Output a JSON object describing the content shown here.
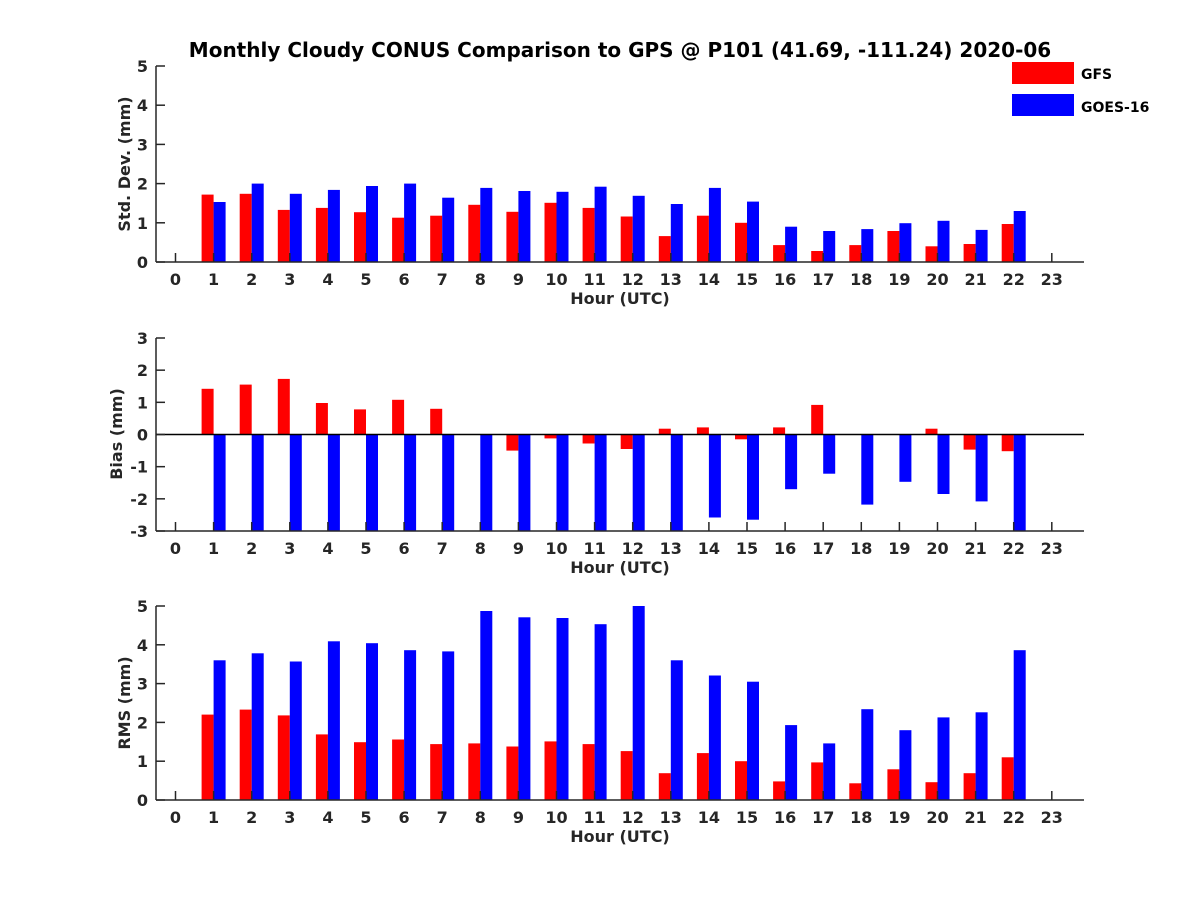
{
  "title": "Monthly Cloudy CONUS Comparison to GPS @ P101 (41.69, -111.24) 2020-06",
  "legend": [
    {
      "name": "GFS",
      "color": "#ff0000"
    },
    {
      "name": "GOES-16",
      "color": "#0000ff"
    }
  ],
  "chart_data": [
    {
      "type": "bar",
      "ylabel": "Std. Dev. (mm)",
      "xlabel": "Hour (UTC)",
      "categories": [
        "0",
        "1",
        "2",
        "3",
        "4",
        "5",
        "6",
        "7",
        "8",
        "9",
        "10",
        "11",
        "12",
        "13",
        "14",
        "15",
        "16",
        "17",
        "18",
        "19",
        "20",
        "21",
        "22",
        "23"
      ],
      "ylim": [
        0,
        5
      ],
      "yticks": [
        "0",
        "1",
        "2",
        "3",
        "4",
        "5"
      ],
      "series": [
        {
          "name": "GFS",
          "color": "#ff0000",
          "values": [
            null,
            1.72,
            1.74,
            1.33,
            1.38,
            1.27,
            1.13,
            1.18,
            1.46,
            1.28,
            1.51,
            1.38,
            1.16,
            0.66,
            1.18,
            1.0,
            0.43,
            0.28,
            0.43,
            0.79,
            0.4,
            0.46,
            0.97,
            null
          ]
        },
        {
          "name": "GOES-16",
          "color": "#0000ff",
          "values": [
            null,
            1.53,
            2.0,
            1.74,
            1.84,
            1.94,
            2.0,
            1.64,
            1.89,
            1.81,
            1.79,
            1.92,
            1.69,
            1.48,
            1.89,
            1.54,
            0.9,
            0.79,
            0.84,
            0.99,
            1.05,
            0.82,
            1.3,
            null
          ]
        }
      ]
    },
    {
      "type": "bar",
      "ylabel": "Bias (mm)",
      "xlabel": "Hour (UTC)",
      "categories": [
        "0",
        "1",
        "2",
        "3",
        "4",
        "5",
        "6",
        "7",
        "8",
        "9",
        "10",
        "11",
        "12",
        "13",
        "14",
        "15",
        "16",
        "17",
        "18",
        "19",
        "20",
        "21",
        "22",
        "23"
      ],
      "ylim": [
        -3,
        3
      ],
      "yticks": [
        "-3",
        "-2",
        "-1",
        "0",
        "1",
        "2",
        "3"
      ],
      "series": [
        {
          "name": "GFS",
          "color": "#ff0000",
          "values": [
            null,
            1.42,
            1.55,
            1.73,
            0.98,
            0.78,
            1.08,
            0.8,
            null,
            -0.5,
            -0.12,
            -0.28,
            -0.45,
            0.18,
            0.22,
            -0.15,
            0.22,
            0.92,
            null,
            null,
            0.18,
            -0.47,
            -0.52,
            null
          ]
        },
        {
          "name": "GOES-16",
          "color": "#0000ff",
          "values": [
            null,
            -3.0,
            -3.0,
            -3.0,
            -3.0,
            -3.0,
            -3.0,
            -3.0,
            -3.0,
            -3.0,
            -3.0,
            -3.0,
            -3.0,
            -3.0,
            -2.58,
            -2.65,
            -1.7,
            -1.22,
            -2.18,
            -1.47,
            -1.85,
            -2.08,
            -3.0,
            null
          ]
        }
      ]
    },
    {
      "type": "bar",
      "ylabel": "RMS (mm)",
      "xlabel": "Hour (UTC)",
      "categories": [
        "0",
        "1",
        "2",
        "3",
        "4",
        "5",
        "6",
        "7",
        "8",
        "9",
        "10",
        "11",
        "12",
        "13",
        "14",
        "15",
        "16",
        "17",
        "18",
        "19",
        "20",
        "21",
        "22",
        "23"
      ],
      "ylim": [
        0,
        5
      ],
      "yticks": [
        "0",
        "1",
        "2",
        "3",
        "4",
        "5"
      ],
      "series": [
        {
          "name": "GFS",
          "color": "#ff0000",
          "values": [
            null,
            2.2,
            2.33,
            2.18,
            1.69,
            1.49,
            1.56,
            1.44,
            1.46,
            1.38,
            1.51,
            1.44,
            1.26,
            0.69,
            1.21,
            1.0,
            0.48,
            0.97,
            0.43,
            0.79,
            0.46,
            0.69,
            1.1,
            null
          ]
        },
        {
          "name": "GOES-16",
          "color": "#0000ff",
          "values": [
            null,
            3.6,
            3.78,
            3.57,
            4.09,
            4.04,
            3.86,
            3.83,
            4.87,
            4.71,
            4.69,
            4.53,
            5.0,
            3.6,
            3.21,
            3.05,
            1.93,
            1.46,
            2.34,
            1.8,
            2.13,
            2.26,
            3.86,
            null
          ]
        }
      ]
    }
  ]
}
